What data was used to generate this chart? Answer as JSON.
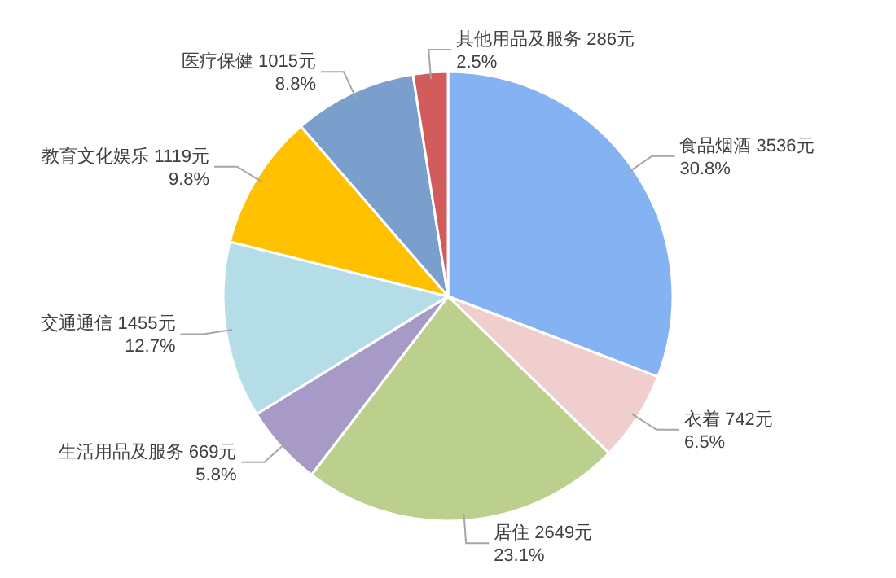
{
  "chart_data": {
    "type": "pie",
    "categories": [
      "食品烟酒",
      "衣着",
      "居住",
      "生活用品及服务",
      "交通通信",
      "教育文化娱乐",
      "医疗保健",
      "其他用品及服务"
    ],
    "values": [
      3536,
      742,
      2649,
      669,
      1455,
      1119,
      1015,
      286
    ],
    "value_labels": [
      "3536元\n30.8%",
      "742元\n6.5%",
      "2649元\n23.1%",
      "669元\n5.8%",
      "1455元\n12.7%",
      "1119元\n9.8%",
      "1015元\n8.8%",
      "286元\n2.5%"
    ],
    "colors": [
      "#85b2f2",
      "#f0cece",
      "#bcd08e",
      "#a89ac6",
      "#b5dde7",
      "#ffc000",
      "#7b9fcc",
      "#d25b5b"
    ]
  }
}
